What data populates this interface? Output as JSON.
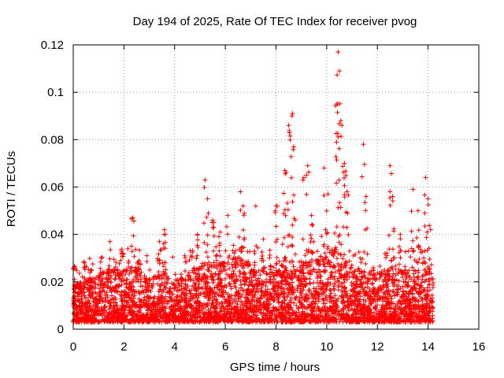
{
  "chart_data": {
    "type": "scatter",
    "title": "Day 194 of 2025, Rate Of TEC Index for receiver pvog",
    "xlabel": "GPS time / hours",
    "ylabel": "ROTI / TECUs",
    "xlim": [
      0,
      16
    ],
    "ylim": [
      0,
      0.12
    ],
    "x_ticks": [
      0,
      2,
      4,
      6,
      8,
      10,
      12,
      14,
      16
    ],
    "y_ticks": [
      0,
      0.02,
      0.04,
      0.06,
      0.08,
      0.1,
      0.12
    ],
    "x_tick_labels": [
      "0",
      "2",
      "4",
      "6",
      "8",
      "10",
      "12",
      "14",
      "16"
    ],
    "y_tick_labels": [
      "0",
      "0.02",
      "0.04",
      "0.06",
      "0.08",
      "0.1",
      "0.12"
    ],
    "grid": true,
    "marker": "+",
    "color": "#ff0000",
    "data_extent_hours": [
      0,
      14.2
    ],
    "envelope": {
      "x": [
        0,
        0.5,
        1.0,
        1.5,
        2.0,
        2.5,
        3.0,
        3.5,
        4.0,
        4.5,
        5.0,
        5.5,
        6.0,
        6.5,
        7.0,
        7.5,
        8.0,
        8.5,
        9.0,
        9.5,
        10.0,
        10.5,
        11.0,
        11.5,
        12.0,
        12.5,
        13.0,
        13.5,
        14.0,
        14.2
      ],
      "typical_max": [
        0.016,
        0.018,
        0.02,
        0.024,
        0.022,
        0.024,
        0.018,
        0.022,
        0.018,
        0.02,
        0.026,
        0.024,
        0.026,
        0.028,
        0.024,
        0.022,
        0.026,
        0.028,
        0.026,
        0.026,
        0.03,
        0.032,
        0.024,
        0.022,
        0.02,
        0.024,
        0.022,
        0.022,
        0.022,
        0.02
      ]
    },
    "spikes": [
      {
        "x": 0.05,
        "y": 0.021
      },
      {
        "x": 0.45,
        "y": 0.028
      },
      {
        "x": 0.7,
        "y": 0.025
      },
      {
        "x": 1.1,
        "y": 0.03
      },
      {
        "x": 1.45,
        "y": 0.037
      },
      {
        "x": 1.9,
        "y": 0.033
      },
      {
        "x": 2.35,
        "y": 0.047
      },
      {
        "x": 2.6,
        "y": 0.029
      },
      {
        "x": 3.4,
        "y": 0.037
      },
      {
        "x": 3.6,
        "y": 0.042
      },
      {
        "x": 4.4,
        "y": 0.031
      },
      {
        "x": 4.9,
        "y": 0.04
      },
      {
        "x": 5.2,
        "y": 0.063
      },
      {
        "x": 5.3,
        "y": 0.055
      },
      {
        "x": 5.5,
        "y": 0.046
      },
      {
        "x": 5.8,
        "y": 0.041
      },
      {
        "x": 6.1,
        "y": 0.048
      },
      {
        "x": 6.6,
        "y": 0.058
      },
      {
        "x": 6.7,
        "y": 0.052
      },
      {
        "x": 7.2,
        "y": 0.052
      },
      {
        "x": 7.5,
        "y": 0.038
      },
      {
        "x": 8.0,
        "y": 0.052
      },
      {
        "x": 8.35,
        "y": 0.067
      },
      {
        "x": 8.5,
        "y": 0.086
      },
      {
        "x": 8.65,
        "y": 0.091
      },
      {
        "x": 8.7,
        "y": 0.077
      },
      {
        "x": 9.1,
        "y": 0.064
      },
      {
        "x": 9.25,
        "y": 0.069
      },
      {
        "x": 9.4,
        "y": 0.048
      },
      {
        "x": 9.9,
        "y": 0.068
      },
      {
        "x": 10.05,
        "y": 0.057
      },
      {
        "x": 10.4,
        "y": 0.095
      },
      {
        "x": 10.45,
        "y": 0.117
      },
      {
        "x": 10.5,
        "y": 0.109
      },
      {
        "x": 10.6,
        "y": 0.086
      },
      {
        "x": 10.7,
        "y": 0.07
      },
      {
        "x": 10.8,
        "y": 0.058
      },
      {
        "x": 11.45,
        "y": 0.078
      },
      {
        "x": 11.55,
        "y": 0.056
      },
      {
        "x": 12.5,
        "y": 0.069
      },
      {
        "x": 12.6,
        "y": 0.056
      },
      {
        "x": 12.9,
        "y": 0.04
      },
      {
        "x": 13.4,
        "y": 0.059
      },
      {
        "x": 13.6,
        "y": 0.05
      },
      {
        "x": 13.9,
        "y": 0.064
      },
      {
        "x": 14.0,
        "y": 0.055
      },
      {
        "x": 14.1,
        "y": 0.042
      }
    ]
  }
}
